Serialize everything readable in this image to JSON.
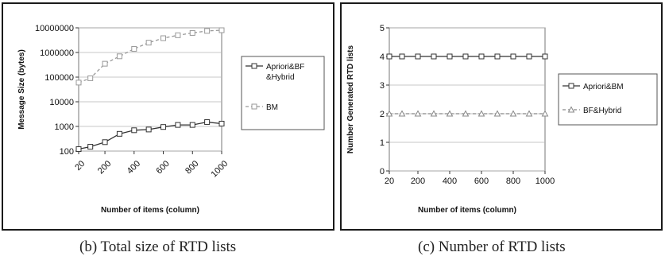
{
  "chart_data": [
    {
      "type": "line",
      "caption": "(b) Total size of RTD lists",
      "xlabel": "Number of items (column)",
      "ylabel": "Message Size (bytes)",
      "y_scale": "log",
      "ylim": [
        100,
        10000000
      ],
      "y_ticks": [
        "100",
        "1000",
        "10000",
        "100000",
        "1000000",
        "10000000"
      ],
      "x_ticks": [
        "20",
        "200",
        "400",
        "600",
        "800",
        "1000"
      ],
      "xlim": [
        20,
        1000
      ],
      "grid": true,
      "legend_position": "right",
      "x": [
        20,
        100,
        200,
        300,
        400,
        500,
        600,
        700,
        800,
        900,
        1000
      ],
      "series": [
        {
          "name": "Apriori&BF &Hybrid",
          "marker": "square",
          "color": "#333333",
          "values": [
            120,
            150,
            230,
            500,
            700,
            750,
            950,
            1150,
            1150,
            1500,
            1300
          ]
        },
        {
          "name": "BM",
          "marker": "square",
          "color": "#999999",
          "values": [
            60000,
            90000,
            350000,
            700000,
            1400000,
            2500000,
            3800000,
            5000000,
            6200000,
            7500000,
            8000000
          ]
        }
      ]
    },
    {
      "type": "line",
      "caption": "(c) Number of RTD lists",
      "xlabel": "Number of items (column)",
      "ylabel": "Number Generated RTD lists",
      "ylim": [
        0,
        5
      ],
      "y_ticks": [
        "0",
        "1",
        "2",
        "3",
        "4",
        "5"
      ],
      "x_ticks": [
        "20",
        "200",
        "400",
        "600",
        "800",
        "1000"
      ],
      "xlim": [
        20,
        1000
      ],
      "grid": true,
      "legend_position": "right",
      "x": [
        20,
        100,
        200,
        300,
        400,
        500,
        600,
        700,
        800,
        900,
        1000
      ],
      "series": [
        {
          "name": "Apriori&BM",
          "marker": "square",
          "color": "#333333",
          "values": [
            4,
            4,
            4,
            4,
            4,
            4,
            4,
            4,
            4,
            4,
            4
          ]
        },
        {
          "name": "BF&Hybrid",
          "marker": "triangle",
          "color": "#888888",
          "values": [
            2,
            2,
            2,
            2,
            2,
            2,
            2,
            2,
            2,
            2,
            2
          ]
        }
      ]
    }
  ]
}
